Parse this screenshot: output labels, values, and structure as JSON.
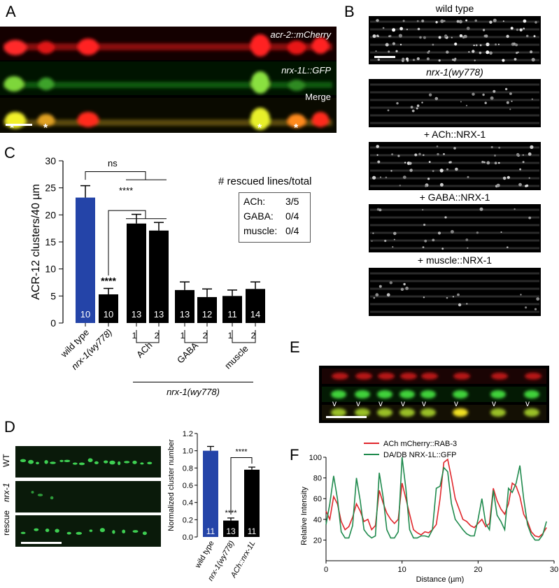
{
  "panels": {
    "A": {
      "letter": "A",
      "row_labels": [
        "acr-2::mCherry",
        "nrx-1L::GFP",
        "Merge"
      ]
    },
    "B": {
      "letter": "B",
      "labels": [
        "wild type",
        "nrx-1(wy778)",
        "+ ACh::NRX-1",
        "+ GABA::NRX-1",
        "+ muscle::NRX-1"
      ]
    },
    "C": {
      "letter": "C",
      "inset_title": "# rescued lines/total",
      "inset_rows": [
        {
          "label": "ACh:",
          "value": "3/5"
        },
        {
          "label": "GABA:",
          "value": "0/4"
        },
        {
          "label": "muscle:",
          "value": "0/4"
        }
      ],
      "sig_labels": {
        "ns": "ns",
        "stars_top": "****",
        "stars_bar": "****"
      },
      "group_labels": [
        "ACh",
        "GABA",
        "muscle"
      ],
      "bottom_label": "nrx-1(wy778)"
    },
    "D": {
      "letter": "D",
      "row_labels": [
        "WT",
        "nrx-1",
        "rescue"
      ]
    },
    "E": {
      "letter": "E"
    },
    "F": {
      "letter": "F",
      "legend": [
        "ACh mCherry::RAB-3",
        "DA/DB NRX-1L::GFP"
      ]
    }
  },
  "chart_data": [
    {
      "id": "C",
      "type": "bar",
      "ylabel": "ACR-12 clusters/40 µm",
      "ylim": [
        0,
        30
      ],
      "yticks": [
        0,
        5,
        10,
        15,
        20,
        25,
        30
      ],
      "categories": [
        "wild type",
        "nrx-1(wy778)",
        "1",
        "2",
        "1",
        "2",
        "1",
        "2"
      ],
      "values": [
        23.2,
        5.3,
        18.4,
        17.1,
        6.1,
        4.8,
        5.0,
        6.3
      ],
      "errors": [
        2.2,
        1.1,
        1.7,
        1.5,
        1.5,
        1.5,
        1.1,
        1.3
      ],
      "n_labels": [
        "10",
        "10",
        "13",
        "13",
        "13",
        "12",
        "11",
        "14"
      ],
      "colors": [
        "#2444a8",
        "#000000",
        "#000000",
        "#000000",
        "#000000",
        "#000000",
        "#000000",
        "#000000"
      ],
      "annotations": [
        "",
        "****",
        "",
        "",
        "",
        "",
        "",
        ""
      ]
    },
    {
      "id": "D",
      "type": "bar",
      "ylabel": "Normalized cluster number",
      "ylim": [
        0,
        1.2
      ],
      "yticks": [
        "0.0",
        "0.2",
        "0.4",
        "0.6",
        "0.8",
        "1.0",
        "1.2"
      ],
      "categories": [
        "wild type",
        "nrx-1(wy778)",
        "ACh::nrx-1L"
      ],
      "values": [
        1.0,
        0.19,
        0.78
      ],
      "errors": [
        0.05,
        0.03,
        0.03
      ],
      "n_labels": [
        "11",
        "13",
        "11"
      ],
      "colors": [
        "#2444a8",
        "#000000",
        "#000000"
      ],
      "annotations": [
        "",
        "****",
        ""
      ],
      "bracket_label": "****"
    },
    {
      "id": "F",
      "type": "line",
      "xlabel": "Distance (µm)",
      "ylabel": "Relative Intensity",
      "xlim": [
        0,
        30
      ],
      "ylim": [
        0,
        100
      ],
      "xticks": [
        0,
        10,
        20,
        30
      ],
      "yticks": [
        20,
        40,
        60,
        80,
        100
      ],
      "series": [
        {
          "name": "ACh mCherry::RAB-3",
          "color": "#e0262b",
          "x": [
            0,
            0.5,
            1,
            1.5,
            2,
            2.5,
            3,
            3.5,
            4,
            4.5,
            5,
            5.5,
            6,
            6.5,
            7,
            7.5,
            8,
            8.5,
            9,
            9.5,
            10,
            10.5,
            11,
            11.5,
            12,
            12.5,
            13,
            13.5,
            14,
            14.5,
            15,
            15.5,
            16,
            16.5,
            17,
            17.5,
            18,
            18.5,
            19,
            19.5,
            20,
            20.5,
            21,
            21.5,
            22,
            22.5,
            23,
            23.5,
            24,
            24.5,
            25,
            25.5,
            26,
            26.5,
            27,
            27.5,
            28,
            28.5,
            29
          ],
          "y": [
            48,
            40,
            62,
            55,
            38,
            30,
            33,
            42,
            55,
            48,
            38,
            40,
            30,
            34,
            68,
            56,
            46,
            40,
            36,
            40,
            75,
            60,
            45,
            30,
            27,
            25,
            28,
            27,
            30,
            35,
            60,
            95,
            98,
            80,
            60,
            50,
            40,
            38,
            34,
            32,
            36,
            40,
            33,
            36,
            70,
            58,
            50,
            45,
            55,
            75,
            72,
            62,
            45,
            38,
            28,
            24,
            23,
            26,
            32
          ]
        },
        {
          "name": "DA/DB NRX-1L::GFP",
          "color": "#1f8a4d",
          "x": [
            0,
            0.5,
            1,
            1.5,
            2,
            2.5,
            3,
            3.5,
            4,
            4.5,
            5,
            5.5,
            6,
            6.5,
            7,
            7.5,
            8,
            8.5,
            9,
            9.5,
            10,
            10.5,
            11,
            11.5,
            12,
            12.5,
            13,
            13.5,
            14,
            14.5,
            15,
            15.5,
            16,
            16.5,
            17,
            17.5,
            18,
            18.5,
            19,
            19.5,
            20,
            20.5,
            21,
            21.5,
            22,
            22.5,
            23,
            23.5,
            24,
            24.5,
            25,
            25.5,
            26,
            26.5,
            27,
            27.5,
            28,
            28.5,
            29
          ],
          "y": [
            35,
            55,
            82,
            60,
            28,
            22,
            22,
            34,
            80,
            58,
            30,
            25,
            22,
            24,
            85,
            62,
            30,
            22,
            22,
            28,
            100,
            70,
            30,
            22,
            22,
            24,
            24,
            23,
            30,
            70,
            72,
            90,
            86,
            55,
            40,
            35,
            30,
            26,
            24,
            24,
            40,
            60,
            36,
            30,
            68,
            44,
            38,
            30,
            70,
            66,
            75,
            92,
            60,
            35,
            25,
            20,
            20,
            25,
            38
          ]
        }
      ]
    }
  ]
}
